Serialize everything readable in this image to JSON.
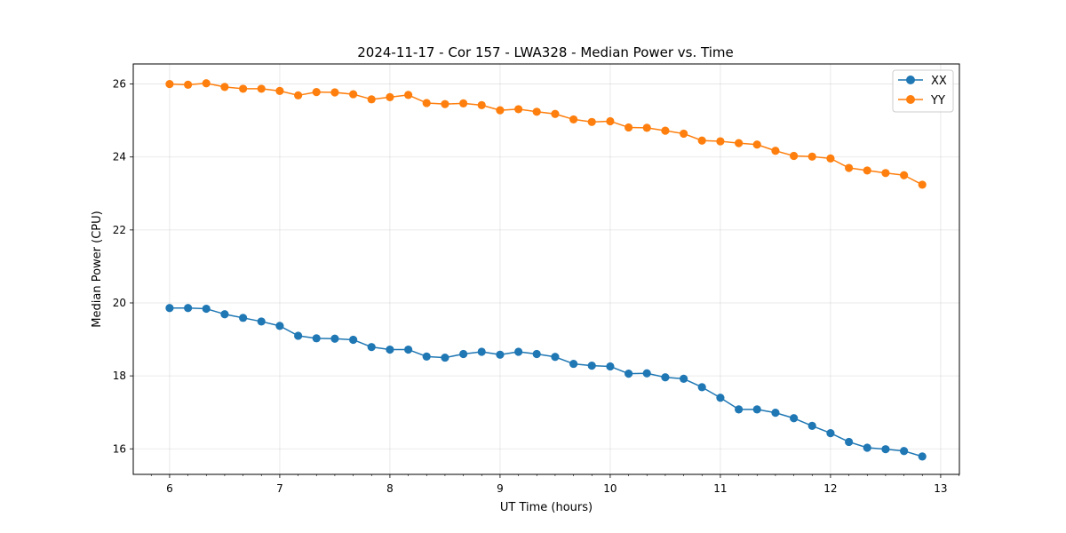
{
  "chart_data": {
    "type": "line",
    "title": "2024-11-17 - Cor 157 - LWA328 - Median Power vs. Time",
    "xlabel": "UT Time (hours)",
    "ylabel": "Median Power (CPU)",
    "xlim": [
      5.67,
      13.17
    ],
    "ylim": [
      15.3,
      26.55
    ],
    "xticks": [
      6,
      7,
      8,
      9,
      10,
      11,
      12,
      13
    ],
    "yticks": [
      16,
      18,
      20,
      22,
      24,
      26
    ],
    "grid": true,
    "legend_position": "top-right",
    "x": [
      6.0,
      6.167,
      6.333,
      6.5,
      6.667,
      6.833,
      7.0,
      7.167,
      7.333,
      7.5,
      7.667,
      7.833,
      8.0,
      8.167,
      8.333,
      8.5,
      8.667,
      8.833,
      9.0,
      9.167,
      9.333,
      9.5,
      9.667,
      9.833,
      10.0,
      10.167,
      10.333,
      10.5,
      10.667,
      10.833,
      11.0,
      11.167,
      11.333,
      11.5,
      11.667,
      11.833,
      12.0,
      12.167,
      12.333,
      12.5,
      12.667,
      12.833
    ],
    "series": [
      {
        "name": "XX",
        "color": "#1f77b4",
        "values": [
          19.86,
          19.86,
          19.84,
          19.69,
          19.59,
          19.49,
          19.37,
          19.1,
          19.03,
          19.02,
          18.99,
          18.79,
          18.72,
          18.72,
          18.53,
          18.5,
          18.6,
          18.66,
          18.58,
          18.66,
          18.6,
          18.52,
          18.33,
          18.28,
          18.26,
          18.06,
          18.07,
          17.96,
          17.92,
          17.69,
          17.4,
          17.08,
          17.08,
          16.99,
          16.84,
          16.63,
          16.43,
          16.19,
          16.03,
          15.99,
          15.94,
          15.79
        ]
      },
      {
        "name": "YY",
        "color": "#ff7f0e",
        "values": [
          26.0,
          25.98,
          26.02,
          25.92,
          25.87,
          25.87,
          25.81,
          25.69,
          25.78,
          25.77,
          25.72,
          25.58,
          25.64,
          25.7,
          25.48,
          25.45,
          25.47,
          25.42,
          25.28,
          25.31,
          25.24,
          25.18,
          25.03,
          24.96,
          24.98,
          24.81,
          24.8,
          24.72,
          24.64,
          24.45,
          24.43,
          24.38,
          24.34,
          24.17,
          24.03,
          24.01,
          23.96,
          23.7,
          23.63,
          23.56,
          23.5,
          23.24
        ]
      }
    ]
  }
}
